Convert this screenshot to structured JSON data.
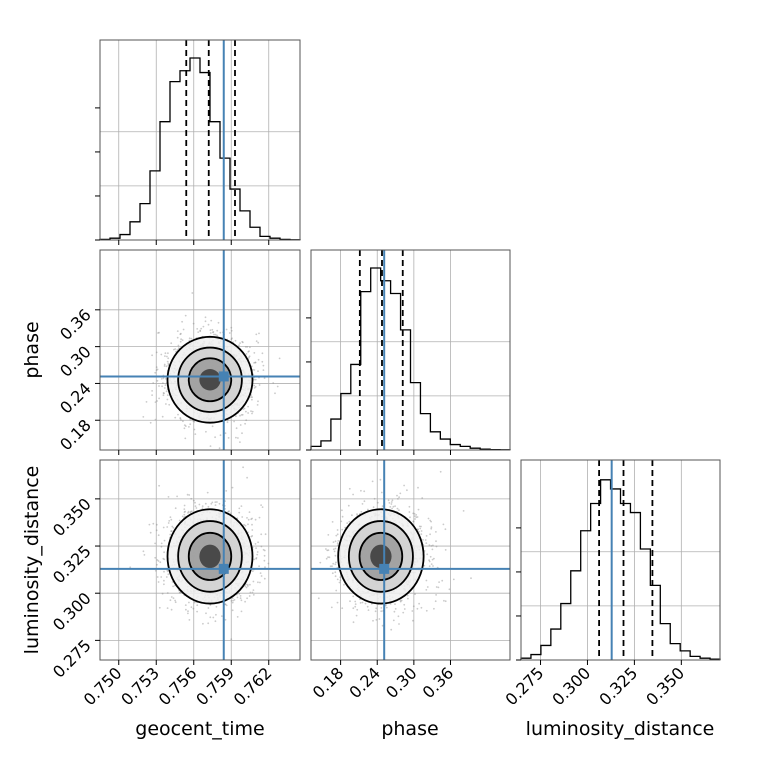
{
  "chart_data": {
    "type": "corner",
    "parameters": [
      "geocent_time",
      "phase",
      "luminosity_distance"
    ],
    "ranges": {
      "geocent_time": [
        0.7485,
        0.7645
      ],
      "phase": [
        0.1315,
        0.4575
      ],
      "luminosity_distance": [
        0.2646,
        0.3706
      ]
    },
    "ticks": {
      "geocent_time": [
        0.75,
        0.753,
        0.756,
        0.759,
        0.762
      ],
      "phase": [
        0.18,
        0.24,
        0.3,
        0.36
      ],
      "luminosity_distance": [
        0.275,
        0.3,
        0.325,
        0.35
      ]
    },
    "tick_labels": {
      "geocent_time": [
        "0.750",
        "0.753",
        "0.756",
        "0.759",
        "0.762"
      ],
      "phase": [
        "0.18",
        "0.24",
        "0.30",
        "0.36"
      ],
      "luminosity_distance": [
        "0.275",
        "0.300",
        "0.325",
        "0.350"
      ]
    },
    "injection": {
      "geocent_time": 0.7584,
      "phase": 0.2514,
      "luminosity_distance": 0.3129
    },
    "quantiles": {
      "geocent_time": [
        0.7554,
        0.7572,
        0.7593
      ],
      "phase": [
        0.2115,
        0.2478,
        0.2818
      ],
      "luminosity_distance": [
        0.3062,
        0.3192,
        0.3346
      ]
    },
    "histograms": {
      "geocent_time": [
        0.003,
        0.01,
        0.03,
        0.1,
        0.2,
        0.38,
        0.65,
        0.87,
        0.93,
        1.0,
        0.92,
        0.65,
        0.45,
        0.28,
        0.16,
        0.07,
        0.02,
        0.01,
        0.003,
        0.001
      ],
      "phase": [
        0.02,
        0.05,
        0.17,
        0.31,
        0.47,
        0.87,
        1.0,
        0.93,
        0.86,
        0.66,
        0.37,
        0.2,
        0.1,
        0.06,
        0.03,
        0.02,
        0.01,
        0.005,
        0.002,
        0.001
      ],
      "luminosity_distance": [
        0.01,
        0.03,
        0.08,
        0.17,
        0.31,
        0.49,
        0.71,
        0.86,
        0.99,
        0.94,
        0.86,
        0.81,
        0.61,
        0.41,
        0.2,
        0.09,
        0.05,
        0.02,
        0.01,
        0.005
      ]
    },
    "posterior_means": {
      "geocent_time": 0.7573,
      "phase": 0.246,
      "luminosity_distance": 0.3195
    },
    "posterior_sigmas": {
      "geocent_time": 0.0017,
      "phase": 0.035,
      "luminosity_distance": 0.0125
    },
    "grid": true,
    "injection_color": "#4682b4",
    "contour_color": "#000000"
  }
}
